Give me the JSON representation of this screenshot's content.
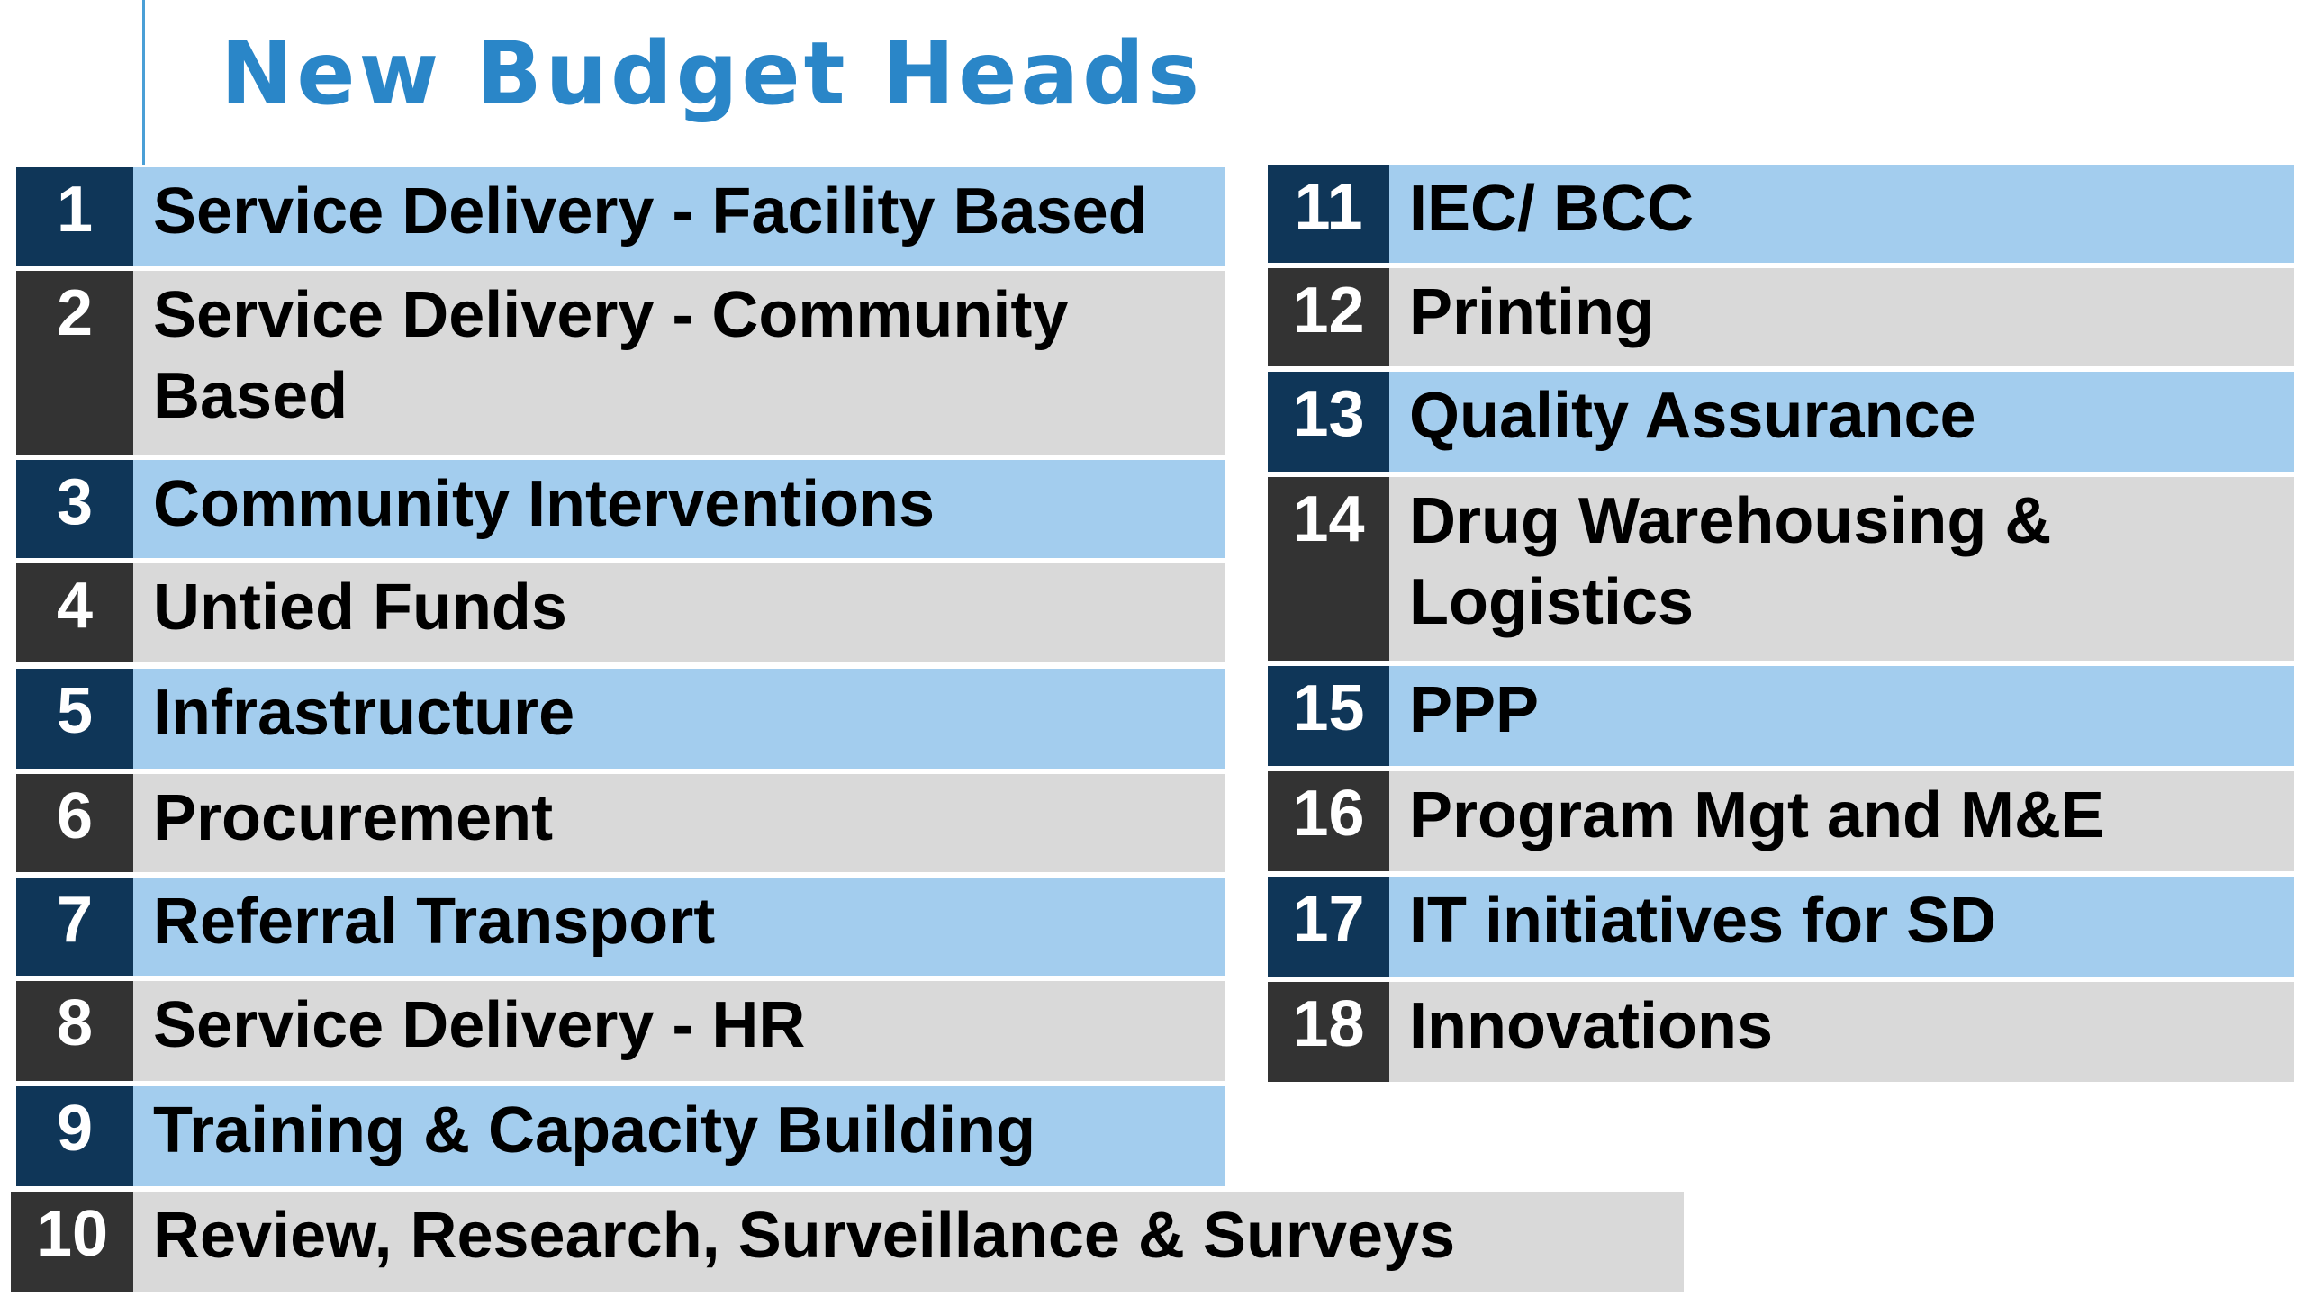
{
  "title": "New Budget Heads",
  "colors": {
    "title": "#2a86c8",
    "number_blue": "#0f3658",
    "number_gray": "#333333",
    "label_blue": "#a3cdee",
    "label_gray": "#d9d9d9"
  },
  "items": [
    {
      "num": "1",
      "label": "Service Delivery - Facility Based"
    },
    {
      "num": "2",
      "label": "Service Delivery - Community Based"
    },
    {
      "num": "3",
      "label": "Community Interventions"
    },
    {
      "num": "4",
      "label": "Untied Funds"
    },
    {
      "num": "5",
      "label": "Infrastructure"
    },
    {
      "num": "6",
      "label": "Procurement"
    },
    {
      "num": "7",
      "label": "Referral Transport"
    },
    {
      "num": "8",
      "label": "Service Delivery - HR"
    },
    {
      "num": "9",
      "label": "Training & Capacity Building"
    },
    {
      "num": "10",
      "label": "Review, Research, Surveillance & Surveys"
    },
    {
      "num": "11",
      "label": "IEC/ BCC"
    },
    {
      "num": "12",
      "label": "Printing"
    },
    {
      "num": "13",
      "label": "Quality Assurance"
    },
    {
      "num": "14",
      "label": "Drug Warehousing & Logistics"
    },
    {
      "num": "15",
      "label": "PPP"
    },
    {
      "num": "16",
      "label": "Program Mgt and M&E"
    },
    {
      "num": "17",
      "label": "IT initiatives for SD"
    },
    {
      "num": "18",
      "label": "Innovations"
    }
  ]
}
